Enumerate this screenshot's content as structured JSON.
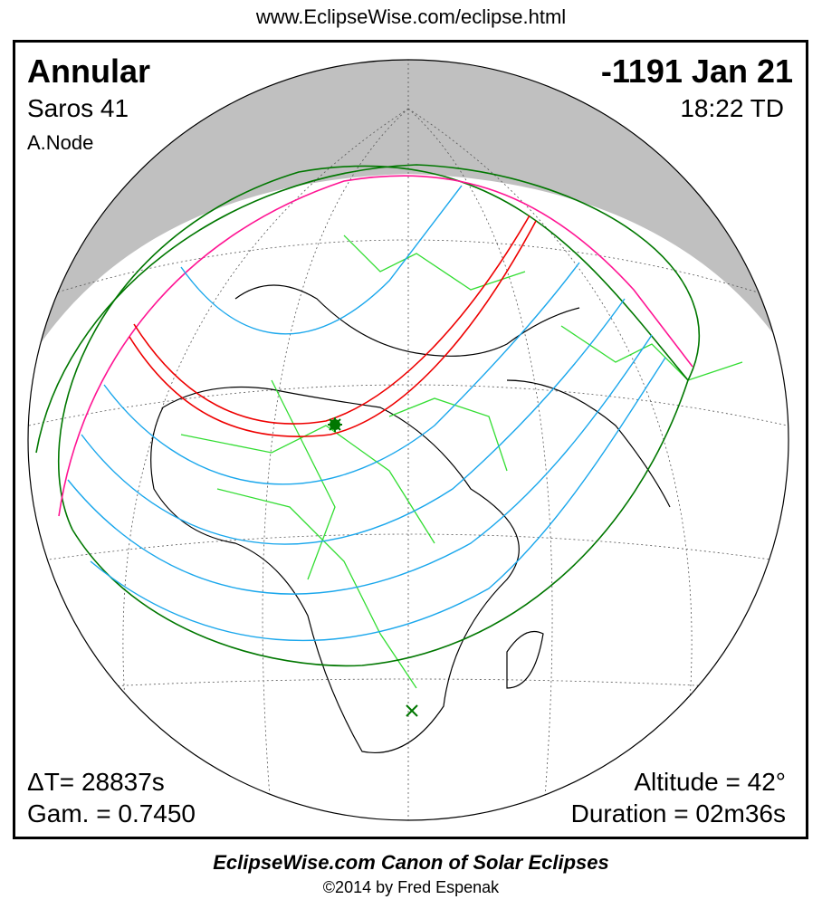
{
  "header_url": "www.EclipseWise.com/eclipse.html",
  "eclipse": {
    "type": "Annular",
    "date": "-1191 Jan 21",
    "saros": "Saros  41",
    "time": "18:22 TD",
    "node": "A.Node",
    "delta_t": "ΔT=  28837s",
    "gamma": "Gam. = 0.7450",
    "altitude": "Altitude = 42°",
    "duration": "Duration = 02m36s"
  },
  "footer": {
    "title": "EclipseWise.com Canon of Solar Eclipses",
    "copyright": "©2014 by Fred Espenak"
  },
  "colors": {
    "night_shade": "#c0c0c0",
    "coastlines": "#000000",
    "borders": "#33dd33",
    "central_path": "#ee0000",
    "penumbral_limits": "#007700",
    "rise_set_curves": "#ff1493",
    "magnitude_curves": "#1aa7ec"
  },
  "markers": {
    "greatest_eclipse": "star-marker",
    "subsolar_point": "x-marker"
  }
}
